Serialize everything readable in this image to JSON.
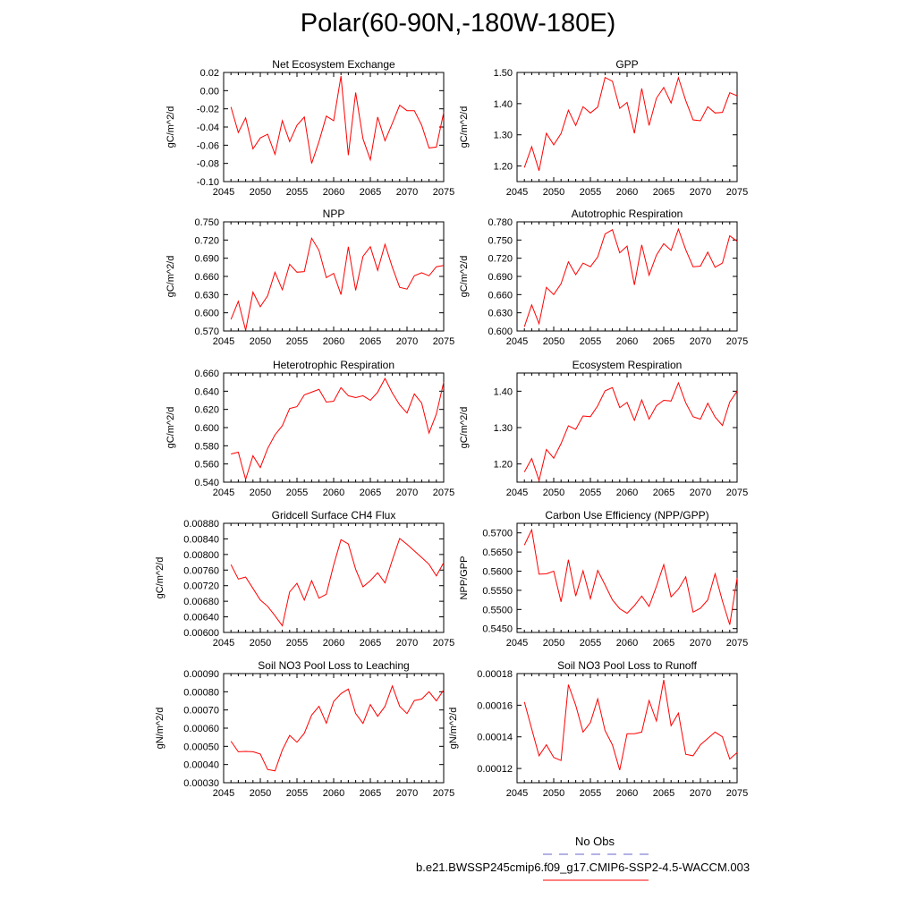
{
  "page_title": "Polar(60-90N,-180W-180E)",
  "legend": {
    "obs_label": "No Obs",
    "model_label": "b.e21.BWSSP245cmip6.f09_g17.CMIP6-SSP2-4.5-WACCM.003",
    "obs_color": "#6666cc",
    "model_color": "#ff0000"
  },
  "line_color": "#ff0000",
  "chart_data": [
    {
      "type": "line",
      "title": "Net Ecosystem Exchange",
      "ylabel": "gC/m^2/d",
      "xlim": [
        2045,
        2075
      ],
      "xticks": [
        2045,
        2050,
        2055,
        2060,
        2065,
        2070,
        2075
      ],
      "ylim": [
        -0.1,
        0.02
      ],
      "yticks": [
        -0.1,
        -0.08,
        -0.06,
        -0.04,
        -0.02,
        0.0,
        0.02
      ],
      "ytick_labels": [
        "-0.10",
        "-0.08",
        "-0.06",
        "-0.04",
        "-0.02",
        "0.00",
        "0.02"
      ],
      "x": [
        2046,
        2047,
        2048,
        2049,
        2050,
        2051,
        2052,
        2053,
        2054,
        2055,
        2056,
        2057,
        2058,
        2059,
        2060,
        2061,
        2062,
        2063,
        2064,
        2065,
        2066,
        2067,
        2068,
        2069,
        2070,
        2071,
        2072,
        2073,
        2074,
        2075
      ],
      "values": [
        -0.018,
        -0.046,
        -0.03,
        -0.064,
        -0.052,
        -0.048,
        -0.07,
        -0.033,
        -0.056,
        -0.038,
        -0.029,
        -0.08,
        -0.056,
        -0.028,
        -0.033,
        0.016,
        -0.071,
        -0.002,
        -0.053,
        -0.076,
        -0.029,
        -0.055,
        -0.036,
        -0.016,
        -0.022,
        -0.022,
        -0.038,
        -0.063,
        -0.062,
        -0.024
      ]
    },
    {
      "type": "line",
      "title": "GPP",
      "ylabel": "gC/m^2/d",
      "xlim": [
        2045,
        2075
      ],
      "xticks": [
        2045,
        2050,
        2055,
        2060,
        2065,
        2070,
        2075
      ],
      "ylim": [
        1.15,
        1.5
      ],
      "yticks": [
        1.2,
        1.3,
        1.4,
        1.5
      ],
      "ytick_labels": [
        "1.20",
        "1.30",
        "1.40",
        "1.50"
      ],
      "x": [
        2046,
        2047,
        2048,
        2049,
        2050,
        2051,
        2052,
        2053,
        2054,
        2055,
        2056,
        2057,
        2058,
        2059,
        2060,
        2061,
        2062,
        2063,
        2064,
        2065,
        2066,
        2067,
        2068,
        2069,
        2070,
        2071,
        2072,
        2073,
        2074,
        2075
      ],
      "values": [
        1.195,
        1.262,
        1.185,
        1.305,
        1.268,
        1.304,
        1.379,
        1.33,
        1.39,
        1.37,
        1.389,
        1.484,
        1.472,
        1.385,
        1.404,
        1.305,
        1.449,
        1.33,
        1.417,
        1.452,
        1.402,
        1.483,
        1.41,
        1.348,
        1.345,
        1.39,
        1.37,
        1.372,
        1.435,
        1.425
      ]
    },
    {
      "type": "line",
      "title": "NPP",
      "ylabel": "gC/m^2/d",
      "xlim": [
        2045,
        2075
      ],
      "xticks": [
        2045,
        2050,
        2055,
        2060,
        2065,
        2070,
        2075
      ],
      "ylim": [
        0.57,
        0.75
      ],
      "yticks": [
        0.57,
        0.6,
        0.63,
        0.66,
        0.69,
        0.72,
        0.75
      ],
      "ytick_labels": [
        "0.570",
        "0.600",
        "0.630",
        "0.660",
        "0.690",
        "0.720",
        "0.750"
      ],
      "x": [
        2046,
        2047,
        2048,
        2049,
        2050,
        2051,
        2052,
        2053,
        2054,
        2055,
        2056,
        2057,
        2058,
        2059,
        2060,
        2061,
        2062,
        2063,
        2064,
        2065,
        2066,
        2067,
        2068,
        2069,
        2070,
        2071,
        2072,
        2073,
        2074,
        2075
      ],
      "values": [
        0.589,
        0.619,
        0.571,
        0.634,
        0.61,
        0.628,
        0.667,
        0.638,
        0.68,
        0.667,
        0.668,
        0.723,
        0.703,
        0.658,
        0.665,
        0.63,
        0.709,
        0.637,
        0.693,
        0.709,
        0.67,
        0.713,
        0.675,
        0.642,
        0.639,
        0.661,
        0.666,
        0.661,
        0.676,
        0.678
      ]
    },
    {
      "type": "line",
      "title": "Autotrophic Respiration",
      "ylabel": "gC/m^2/d",
      "xlim": [
        2045,
        2075
      ],
      "xticks": [
        2045,
        2050,
        2055,
        2060,
        2065,
        2070,
        2075
      ],
      "ylim": [
        0.6,
        0.78
      ],
      "yticks": [
        0.6,
        0.63,
        0.66,
        0.69,
        0.72,
        0.75,
        0.78
      ],
      "ytick_labels": [
        "0.600",
        "0.630",
        "0.660",
        "0.690",
        "0.720",
        "0.750",
        "0.780"
      ],
      "x": [
        2046,
        2047,
        2048,
        2049,
        2050,
        2051,
        2052,
        2053,
        2054,
        2055,
        2056,
        2057,
        2058,
        2059,
        2060,
        2061,
        2062,
        2063,
        2064,
        2065,
        2066,
        2067,
        2068,
        2069,
        2070,
        2071,
        2072,
        2073,
        2074,
        2075
      ],
      "values": [
        0.607,
        0.643,
        0.612,
        0.672,
        0.66,
        0.678,
        0.714,
        0.693,
        0.712,
        0.706,
        0.722,
        0.76,
        0.767,
        0.729,
        0.74,
        0.676,
        0.742,
        0.692,
        0.725,
        0.744,
        0.733,
        0.768,
        0.734,
        0.706,
        0.707,
        0.73,
        0.705,
        0.712,
        0.757,
        0.748
      ]
    },
    {
      "type": "line",
      "title": "Heterotrophic Respiration",
      "ylabel": "gC/m^2/d",
      "xlim": [
        2045,
        2075
      ],
      "xticks": [
        2045,
        2050,
        2055,
        2060,
        2065,
        2070,
        2075
      ],
      "ylim": [
        0.54,
        0.66
      ],
      "yticks": [
        0.54,
        0.56,
        0.58,
        0.6,
        0.62,
        0.64,
        0.66
      ],
      "ytick_labels": [
        "0.540",
        "0.560",
        "0.580",
        "0.600",
        "0.620",
        "0.640",
        "0.660"
      ],
      "x": [
        2046,
        2047,
        2048,
        2049,
        2050,
        2051,
        2052,
        2053,
        2054,
        2055,
        2056,
        2057,
        2058,
        2059,
        2060,
        2061,
        2062,
        2063,
        2064,
        2065,
        2066,
        2067,
        2068,
        2069,
        2070,
        2071,
        2072,
        2073,
        2074,
        2075
      ],
      "values": [
        0.571,
        0.573,
        0.543,
        0.569,
        0.556,
        0.577,
        0.592,
        0.602,
        0.621,
        0.623,
        0.636,
        0.639,
        0.642,
        0.628,
        0.629,
        0.644,
        0.635,
        0.633,
        0.635,
        0.63,
        0.639,
        0.654,
        0.638,
        0.625,
        0.616,
        0.637,
        0.627,
        0.594,
        0.615,
        0.65
      ]
    },
    {
      "type": "line",
      "title": "Ecosystem Respiration",
      "ylabel": "gC/m^2/d",
      "xlim": [
        2045,
        2075
      ],
      "xticks": [
        2045,
        2050,
        2055,
        2060,
        2065,
        2070,
        2075
      ],
      "ylim": [
        1.15,
        1.45
      ],
      "yticks": [
        1.2,
        1.3,
        1.4
      ],
      "ytick_labels": [
        "1.20",
        "1.30",
        "1.40"
      ],
      "x": [
        2046,
        2047,
        2048,
        2049,
        2050,
        2051,
        2052,
        2053,
        2054,
        2055,
        2056,
        2057,
        2058,
        2059,
        2060,
        2061,
        2062,
        2063,
        2064,
        2065,
        2066,
        2067,
        2068,
        2069,
        2070,
        2071,
        2072,
        2073,
        2074,
        2075
      ],
      "values": [
        1.178,
        1.215,
        1.155,
        1.24,
        1.216,
        1.256,
        1.305,
        1.295,
        1.332,
        1.33,
        1.36,
        1.401,
        1.41,
        1.355,
        1.369,
        1.32,
        1.376,
        1.323,
        1.36,
        1.375,
        1.373,
        1.423,
        1.368,
        1.33,
        1.323,
        1.367,
        1.329,
        1.306,
        1.37,
        1.4
      ]
    },
    {
      "type": "line",
      "title": "Gridcell Surface CH4 Flux",
      "ylabel": "gC/m^2/d",
      "xlim": [
        2045,
        2075
      ],
      "xticks": [
        2045,
        2050,
        2055,
        2060,
        2065,
        2070,
        2075
      ],
      "ylim": [
        0.006,
        0.0088
      ],
      "yticks": [
        0.006,
        0.0064,
        0.0068,
        0.0072,
        0.0076,
        0.008,
        0.0084,
        0.0088
      ],
      "ytick_labels": [
        "0.00600",
        "0.00640",
        "0.00680",
        "0.00720",
        "0.00760",
        "0.00800",
        "0.00840",
        "0.00880"
      ],
      "x": [
        2046,
        2047,
        2048,
        2049,
        2050,
        2051,
        2052,
        2053,
        2054,
        2055,
        2056,
        2057,
        2058,
        2059,
        2060,
        2061,
        2062,
        2063,
        2064,
        2065,
        2066,
        2067,
        2068,
        2069,
        2070,
        2071,
        2072,
        2073,
        2074,
        2075
      ],
      "values": [
        0.00774,
        0.00737,
        0.00742,
        0.00713,
        0.00683,
        0.00667,
        0.00643,
        0.00617,
        0.00704,
        0.00726,
        0.00683,
        0.00733,
        0.00688,
        0.00698,
        0.00773,
        0.00838,
        0.00827,
        0.00762,
        0.00717,
        0.00733,
        0.00753,
        0.00727,
        0.00786,
        0.00841,
        0.00826,
        0.00809,
        0.00792,
        0.00775,
        0.00745,
        0.00779
      ]
    },
    {
      "type": "line",
      "title": "Carbon Use Efficiency (NPP/GPP)",
      "ylabel": "NPP/GPP",
      "xlim": [
        2045,
        2075
      ],
      "xticks": [
        2045,
        2050,
        2055,
        2060,
        2065,
        2070,
        2075
      ],
      "ylim": [
        0.544,
        0.5725
      ],
      "yticks": [
        0.545,
        0.55,
        0.555,
        0.56,
        0.565,
        0.57
      ],
      "ytick_labels": [
        "0.5450",
        "0.5500",
        "0.5550",
        "0.5600",
        "0.5650",
        "0.5700"
      ],
      "x": [
        2046,
        2047,
        2048,
        2049,
        2050,
        2051,
        2052,
        2053,
        2054,
        2055,
        2056,
        2057,
        2058,
        2059,
        2060,
        2061,
        2062,
        2063,
        2064,
        2065,
        2066,
        2067,
        2068,
        2069,
        2070,
        2071,
        2072,
        2073,
        2074,
        2075
      ],
      "values": [
        0.5668,
        0.5708,
        0.5592,
        0.5593,
        0.56,
        0.552,
        0.563,
        0.5535,
        0.5601,
        0.5528,
        0.5602,
        0.5564,
        0.5525,
        0.5502,
        0.549,
        0.551,
        0.5535,
        0.5508,
        0.556,
        0.5617,
        0.5533,
        0.5553,
        0.5585,
        0.5493,
        0.5503,
        0.5525,
        0.5593,
        0.5522,
        0.546,
        0.5582
      ]
    },
    {
      "type": "line",
      "title": "Soil NO3 Pool Loss to Leaching",
      "ylabel": "gN/m^2/d",
      "xlim": [
        2045,
        2075
      ],
      "xticks": [
        2045,
        2050,
        2055,
        2060,
        2065,
        2070,
        2075
      ],
      "ylim": [
        0.0003,
        0.0009
      ],
      "yticks": [
        0.0003,
        0.0004,
        0.0005,
        0.0006,
        0.0007,
        0.0008,
        0.0009
      ],
      "ytick_labels": [
        "0.00030",
        "0.00040",
        "0.00050",
        "0.00060",
        "0.00070",
        "0.00080",
        "0.00090"
      ],
      "x": [
        2046,
        2047,
        2048,
        2049,
        2050,
        2051,
        2052,
        2053,
        2054,
        2055,
        2056,
        2057,
        2058,
        2059,
        2060,
        2061,
        2062,
        2063,
        2064,
        2065,
        2066,
        2067,
        2068,
        2069,
        2070,
        2071,
        2072,
        2073,
        2074,
        2075
      ],
      "values": [
        0.000528,
        0.00047,
        0.000472,
        0.00047,
        0.000458,
        0.000373,
        0.000365,
        0.00048,
        0.00056,
        0.000523,
        0.000572,
        0.000672,
        0.00072,
        0.000627,
        0.000747,
        0.00079,
        0.000815,
        0.00068,
        0.000626,
        0.00073,
        0.000665,
        0.00072,
        0.000832,
        0.00072,
        0.00068,
        0.000752,
        0.00076,
        0.0008,
        0.00075,
        0.00081
      ]
    },
    {
      "type": "line",
      "title": "Soil NO3 Pool Loss to Runoff",
      "ylabel": "gN/m^2/d",
      "xlim": [
        2045,
        2075
      ],
      "xticks": [
        2045,
        2050,
        2055,
        2060,
        2065,
        2070,
        2075
      ],
      "ylim": [
        0.000111,
        0.00018
      ],
      "yticks": [
        0.00012,
        0.00014,
        0.00016,
        0.00018
      ],
      "ytick_labels": [
        "0.00012",
        "0.00014",
        "0.00016",
        "0.00018"
      ],
      "x": [
        2046,
        2047,
        2048,
        2049,
        2050,
        2051,
        2052,
        2053,
        2054,
        2055,
        2056,
        2057,
        2058,
        2059,
        2060,
        2061,
        2062,
        2063,
        2064,
        2065,
        2066,
        2067,
        2068,
        2069,
        2070,
        2071,
        2072,
        2073,
        2074,
        2075
      ],
      "values": [
        0.000162,
        0.000145,
        0.000128,
        0.000135,
        0.000127,
        0.000125,
        0.000173,
        0.00016,
        0.000143,
        0.000149,
        0.000164,
        0.000144,
        0.000135,
        0.000119,
        0.000142,
        0.000142,
        0.000143,
        0.000163,
        0.00015,
        0.000176,
        0.000147,
        0.000155,
        0.000129,
        0.000128,
        0.000135,
        0.000139,
        0.000143,
        0.00014,
        0.000126,
        0.00013
      ]
    }
  ]
}
